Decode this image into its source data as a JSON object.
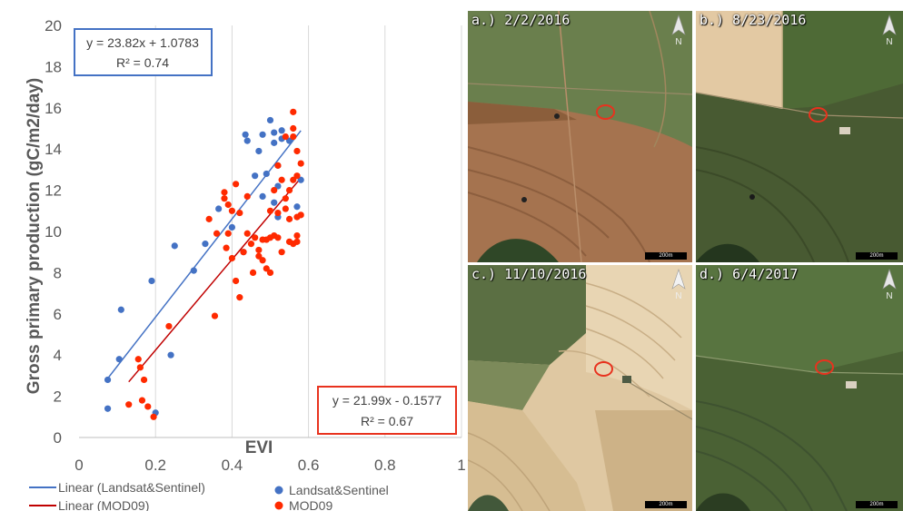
{
  "chart_data": {
    "type": "scatter",
    "xlabel": "EVI",
    "ylabel": "Gross primary production  (gC/m2/day)",
    "xlim": [
      0,
      1
    ],
    "ylim": [
      0,
      20
    ],
    "x_ticks": [
      "0",
      "0.2",
      "0.4",
      "0.6",
      "0.8",
      "1"
    ],
    "y_ticks": [
      "0",
      "2",
      "4",
      "6",
      "8",
      "10",
      "12",
      "14",
      "16",
      "18",
      "20"
    ],
    "grid": "vertical",
    "legend_placement": "bottom",
    "series": [
      {
        "name": "Landsat&Sentinel",
        "color": "#4472c4",
        "points": [
          [
            0.075,
            1.4
          ],
          [
            0.075,
            2.8
          ],
          [
            0.105,
            3.8
          ],
          [
            0.11,
            6.2
          ],
          [
            0.19,
            7.6
          ],
          [
            0.2,
            1.2
          ],
          [
            0.24,
            4.0
          ],
          [
            0.25,
            9.3
          ],
          [
            0.3,
            8.1
          ],
          [
            0.33,
            9.4
          ],
          [
            0.365,
            11.1
          ],
          [
            0.4,
            10.2
          ],
          [
            0.43,
            9.0
          ],
          [
            0.435,
            14.7
          ],
          [
            0.44,
            14.4
          ],
          [
            0.46,
            12.7
          ],
          [
            0.47,
            13.9
          ],
          [
            0.48,
            11.7
          ],
          [
            0.48,
            14.7
          ],
          [
            0.49,
            12.8
          ],
          [
            0.5,
            15.4
          ],
          [
            0.51,
            14.8
          ],
          [
            0.51,
            14.3
          ],
          [
            0.51,
            11.4
          ],
          [
            0.52,
            13.2
          ],
          [
            0.52,
            12.2
          ],
          [
            0.52,
            10.7
          ],
          [
            0.53,
            14.9
          ],
          [
            0.53,
            14.5
          ],
          [
            0.55,
            14.4
          ],
          [
            0.57,
            11.2
          ],
          [
            0.58,
            12.5
          ]
        ]
      },
      {
        "name": "MOD09",
        "color": "#ff2a00",
        "points": [
          [
            0.13,
            1.6
          ],
          [
            0.155,
            3.8
          ],
          [
            0.16,
            3.4
          ],
          [
            0.165,
            1.8
          ],
          [
            0.17,
            2.8
          ],
          [
            0.18,
            1.5
          ],
          [
            0.195,
            1.0
          ],
          [
            0.235,
            5.4
          ],
          [
            0.34,
            10.6
          ],
          [
            0.355,
            5.9
          ],
          [
            0.36,
            9.9
          ],
          [
            0.38,
            11.9
          ],
          [
            0.38,
            11.6
          ],
          [
            0.385,
            9.2
          ],
          [
            0.39,
            11.3
          ],
          [
            0.39,
            9.9
          ],
          [
            0.4,
            8.7
          ],
          [
            0.4,
            11.0
          ],
          [
            0.41,
            12.3
          ],
          [
            0.41,
            7.6
          ],
          [
            0.42,
            10.9
          ],
          [
            0.42,
            6.8
          ],
          [
            0.43,
            9.0
          ],
          [
            0.44,
            11.7
          ],
          [
            0.44,
            9.9
          ],
          [
            0.45,
            9.4
          ],
          [
            0.455,
            8.0
          ],
          [
            0.46,
            9.7
          ],
          [
            0.47,
            9.1
          ],
          [
            0.47,
            8.8
          ],
          [
            0.48,
            9.6
          ],
          [
            0.48,
            8.6
          ],
          [
            0.49,
            9.6
          ],
          [
            0.49,
            8.2
          ],
          [
            0.5,
            11.0
          ],
          [
            0.5,
            9.7
          ],
          [
            0.5,
            8.0
          ],
          [
            0.51,
            12.0
          ],
          [
            0.51,
            9.8
          ],
          [
            0.52,
            13.2
          ],
          [
            0.52,
            10.9
          ],
          [
            0.52,
            9.7
          ],
          [
            0.53,
            12.5
          ],
          [
            0.53,
            9.0
          ],
          [
            0.54,
            14.6
          ],
          [
            0.54,
            11.6
          ],
          [
            0.54,
            11.1
          ],
          [
            0.55,
            12.0
          ],
          [
            0.55,
            10.6
          ],
          [
            0.55,
            9.5
          ],
          [
            0.56,
            15.8
          ],
          [
            0.56,
            15.0
          ],
          [
            0.56,
            14.6
          ],
          [
            0.56,
            12.5
          ],
          [
            0.56,
            9.4
          ],
          [
            0.57,
            13.9
          ],
          [
            0.57,
            12.7
          ],
          [
            0.57,
            10.7
          ],
          [
            0.57,
            9.8
          ],
          [
            0.57,
            9.5
          ],
          [
            0.58,
            13.3
          ],
          [
            0.58,
            10.8
          ]
        ]
      }
    ],
    "trendlines": [
      {
        "name": "Linear (Landsat&Sentinel)",
        "color": "#4472c4",
        "slope": 23.82,
        "intercept": 1.0783,
        "x_range": [
          0.075,
          0.58
        ],
        "equation": "y = 23.82x + 1.0783",
        "r2": "R² = 0.74"
      },
      {
        "name": "Linear (MOD09)",
        "color": "#c00000",
        "slope": 21.99,
        "intercept": -0.1577,
        "x_range": [
          0.13,
          0.58
        ],
        "equation": "y = 21.99x - 0.1577",
        "r2": "R² = 0.67"
      }
    ]
  },
  "maps": [
    {
      "label": "a.) 2/2/2016",
      "scale": "200m",
      "north": "N"
    },
    {
      "label": "b.) 8/23/2016",
      "scale": "200m",
      "north": "N"
    },
    {
      "label": "c.) 11/10/2016",
      "scale": "200m",
      "north": "N"
    },
    {
      "label": "d.) 6/4/2017",
      "scale": "200m",
      "north": "N"
    }
  ]
}
